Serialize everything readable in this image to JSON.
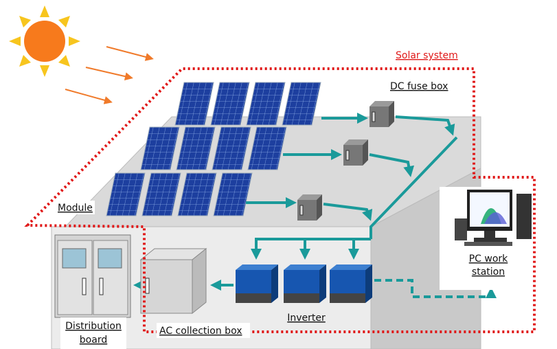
{
  "labels": {
    "solar_system": "Solar system",
    "dc_fuse_box": "DC fuse box",
    "module": "Module",
    "pc_work_station": [
      "PC work",
      "station"
    ],
    "distribution_board": [
      "Distribution",
      "board"
    ],
    "ac_collection_box": "AC collection box",
    "inverter": "Inverter"
  }
}
